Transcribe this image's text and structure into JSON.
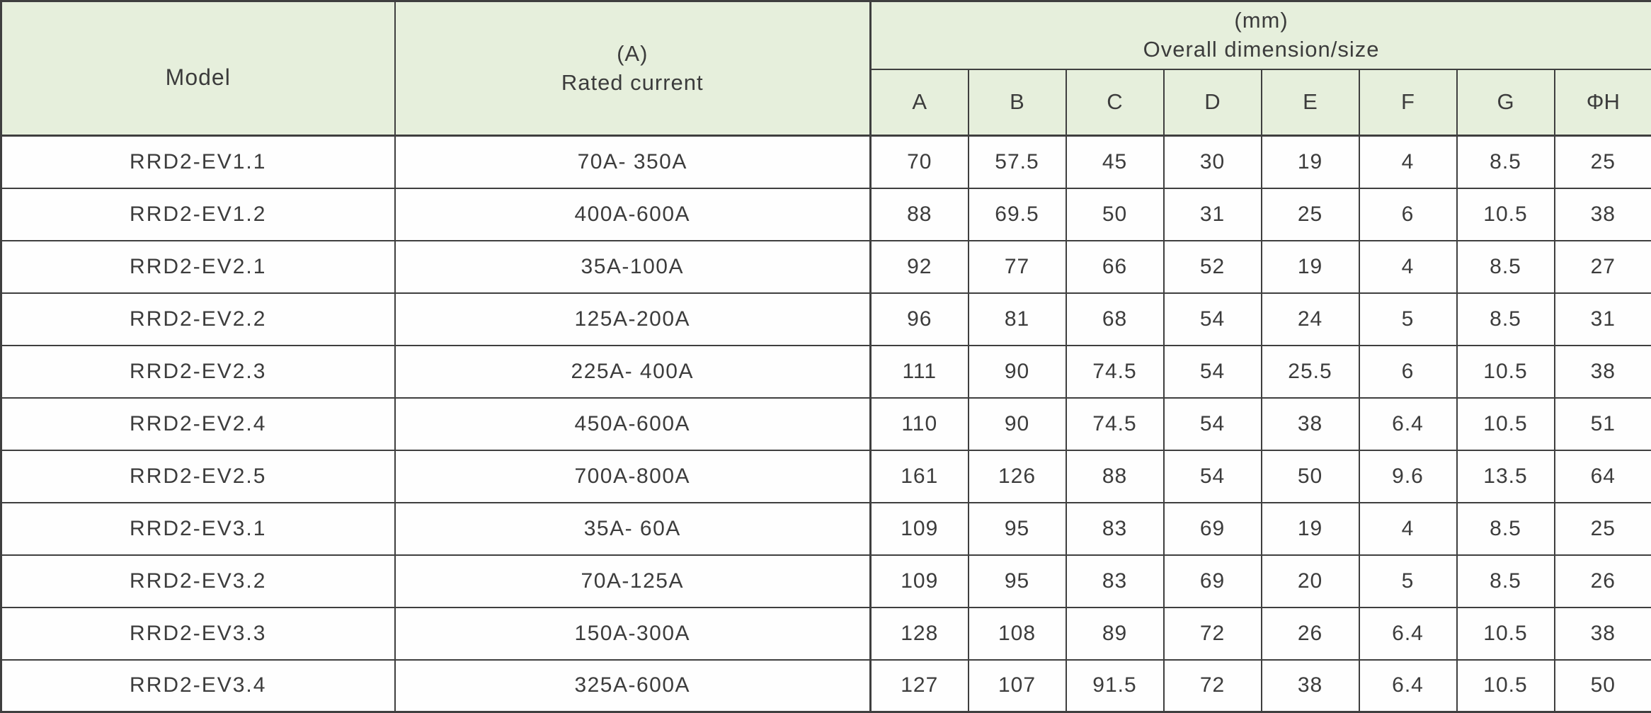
{
  "colors": {
    "header_bg": "#e6efdc",
    "border": "#3f3f3f",
    "text": "#3c3c3c",
    "row_bg": "#fefefe"
  },
  "header": {
    "model": "Model",
    "rated_current_unit": "(A)",
    "rated_current_label": "Rated current",
    "dimension_unit": "(mm)",
    "dimension_label": "Overall dimension/size",
    "dim_columns": [
      "A",
      "B",
      "C",
      "D",
      "E",
      "F",
      "G",
      "ΦH"
    ]
  },
  "rows": [
    {
      "model": "RRD2-EV1.1",
      "rated_current": "70A- 350A",
      "dims": [
        "70",
        "57.5",
        "45",
        "30",
        "19",
        "4",
        "8.5",
        "25"
      ]
    },
    {
      "model": "RRD2-EV1.2",
      "rated_current": "400A-600A",
      "dims": [
        "88",
        "69.5",
        "50",
        "31",
        "25",
        "6",
        "10.5",
        "38"
      ]
    },
    {
      "model": "RRD2-EV2.1",
      "rated_current": "35A-100A",
      "dims": [
        "92",
        "77",
        "66",
        "52",
        "19",
        "4",
        "8.5",
        "27"
      ]
    },
    {
      "model": "RRD2-EV2.2",
      "rated_current": "125A-200A",
      "dims": [
        "96",
        "81",
        "68",
        "54",
        "24",
        "5",
        "8.5",
        "31"
      ]
    },
    {
      "model": "RRD2-EV2.3",
      "rated_current": "225A- 400A",
      "dims": [
        "111",
        "90",
        "74.5",
        "54",
        "25.5",
        "6",
        "10.5",
        "38"
      ]
    },
    {
      "model": "RRD2-EV2.4",
      "rated_current": "450A-600A",
      "dims": [
        "110",
        "90",
        "74.5",
        "54",
        "38",
        "6.4",
        "10.5",
        "51"
      ]
    },
    {
      "model": "RRD2-EV2.5",
      "rated_current": "700A-800A",
      "dims": [
        "161",
        "126",
        "88",
        "54",
        "50",
        "9.6",
        "13.5",
        "64"
      ]
    },
    {
      "model": "RRD2-EV3.1",
      "rated_current": "35A- 60A",
      "dims": [
        "109",
        "95",
        "83",
        "69",
        "19",
        "4",
        "8.5",
        "25"
      ]
    },
    {
      "model": "RRD2-EV3.2",
      "rated_current": "70A-125A",
      "dims": [
        "109",
        "95",
        "83",
        "69",
        "20",
        "5",
        "8.5",
        "26"
      ]
    },
    {
      "model": "RRD2-EV3.3",
      "rated_current": "150A-300A",
      "dims": [
        "128",
        "108",
        "89",
        "72",
        "26",
        "6.4",
        "10.5",
        "38"
      ]
    },
    {
      "model": "RRD2-EV3.4",
      "rated_current": "325A-600A",
      "dims": [
        "127",
        "107",
        "91.5",
        "72",
        "38",
        "6.4",
        "10.5",
        "50"
      ]
    }
  ]
}
